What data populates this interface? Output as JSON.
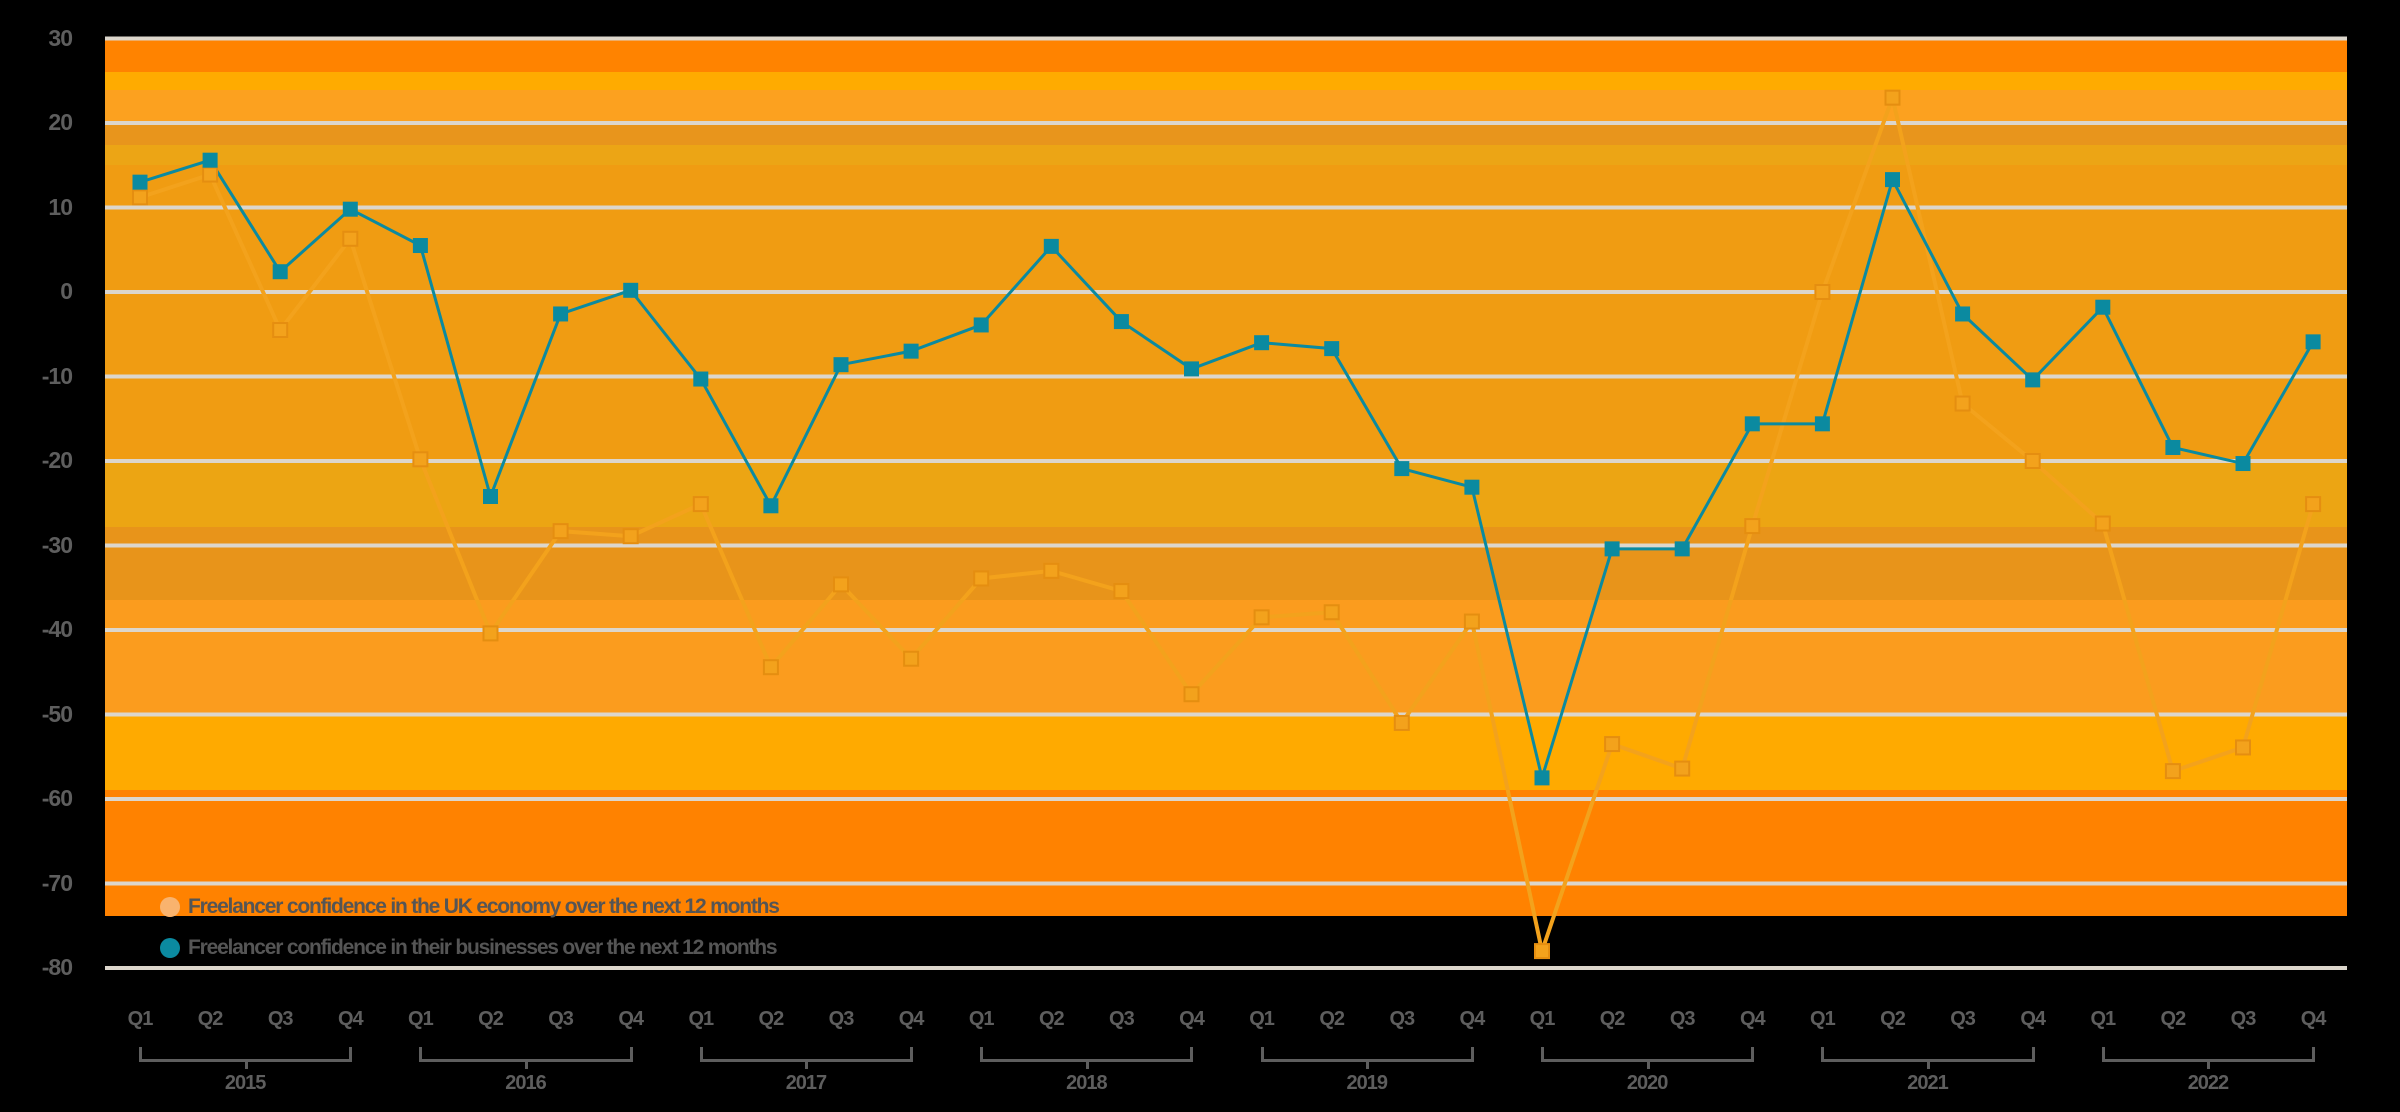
{
  "chart_data": {
    "type": "line",
    "title": "",
    "xlabel": "",
    "ylabel": "",
    "ylim": [
      -80,
      30
    ],
    "yticks": [
      30,
      20,
      10,
      0,
      -10,
      -20,
      -30,
      -40,
      -50,
      -60,
      -70,
      -80
    ],
    "grid": true,
    "legend_position": "bottom-left inside plot",
    "years": [
      "2015",
      "2016",
      "2017",
      "2018",
      "2019",
      "2020",
      "2021",
      "2022"
    ],
    "quarters": [
      "Q1",
      "Q2",
      "Q3",
      "Q4"
    ],
    "categories": [
      "Q1 2015",
      "Q2 2015",
      "Q3 2015",
      "Q4 2015",
      "Q1 2016",
      "Q2 2016",
      "Q3 2016",
      "Q4 2016",
      "Q1 2017",
      "Q2 2017",
      "Q3 2017",
      "Q4 2017",
      "Q1 2018",
      "Q2 2018",
      "Q3 2018",
      "Q4 2018",
      "Q1 2019",
      "Q2 2019",
      "Q3 2019",
      "Q4 2019",
      "Q1 2020",
      "Q2 2020",
      "Q3 2020",
      "Q4 2020",
      "Q1 2021",
      "Q2 2021",
      "Q3 2021",
      "Q4 2021",
      "Q1 2022",
      "Q2 2022",
      "Q3 2022",
      "Q4 2022"
    ],
    "series": [
      {
        "name": "Freelancer confidence in the UK economy over the next 12 months",
        "color": "#f9b36e",
        "marker": "hollow-square",
        "values": [
          11.2,
          13.9,
          -4.5,
          6.3,
          -19.8,
          -40.4,
          -28.3,
          -28.9,
          -25.1,
          -44.4,
          -34.6,
          -43.4,
          -33.9,
          -33.0,
          -35.4,
          -47.6,
          -38.5,
          -37.9,
          -51.0,
          -39.0,
          -78.0,
          -53.5,
          -56.4,
          -27.7,
          0.0,
          23.0,
          -13.2,
          -20.0,
          -27.4,
          -56.7,
          -53.9,
          -25.1
        ]
      },
      {
        "name": "Freelancer confidence in their businesses over the next 12 months",
        "color": "#0b8aa0",
        "marker": "filled-square",
        "values": [
          13.0,
          15.6,
          2.4,
          9.8,
          5.5,
          -24.2,
          -2.6,
          0.2,
          -10.3,
          -25.3,
          -8.6,
          -7.0,
          -3.9,
          5.4,
          -3.5,
          -9.1,
          -6.0,
          -6.7,
          -20.9,
          -23.1,
          -57.5,
          -30.4,
          -30.4,
          -15.6,
          -15.6,
          13.3,
          -2.6,
          -10.4,
          -1.8,
          -18.4,
          -20.3,
          -5.9
        ]
      }
    ]
  },
  "legend": {
    "items": [
      {
        "label": "Freelancer confidence in the UK economy over the next 12 months",
        "color": "#f9b36e"
      },
      {
        "label": "Freelancer confidence in their businesses over the next 12 months",
        "color": "#0b8aa0"
      }
    ]
  },
  "style": {
    "background": "#000000",
    "gridline_color": "#dcd6cc",
    "axis_text_color": "#5e5e5e",
    "bands": [
      {
        "from": 40,
        "to": 72,
        "color": "#ff8300"
      },
      {
        "from": 72,
        "to": 90,
        "color": "#ffab00"
      },
      {
        "from": 90,
        "to": 124,
        "color": "#fca11f"
      },
      {
        "from": 124,
        "to": 145,
        "color": "#e8951c"
      },
      {
        "from": 145,
        "to": 165,
        "color": "#eca515"
      },
      {
        "from": 165,
        "to": 462,
        "color": "#f09c12"
      },
      {
        "from": 462,
        "to": 527,
        "color": "#eca513"
      },
      {
        "from": 527,
        "to": 600,
        "color": "#e8941a"
      },
      {
        "from": 600,
        "to": 715,
        "color": "#fb9c1e"
      },
      {
        "from": 715,
        "to": 790,
        "color": "#ffaa00"
      },
      {
        "from": 790,
        "to": 916,
        "color": "#ff8200"
      }
    ]
  }
}
